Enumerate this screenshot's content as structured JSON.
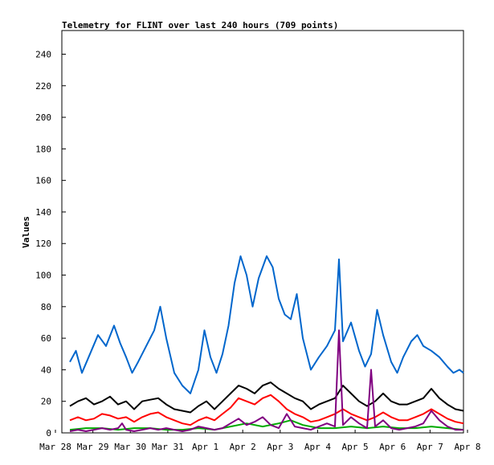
{
  "chart_data": {
    "type": "line",
    "title": "Telemetry for FLINT over last 240 hours (709 points)",
    "ylabel": "Values",
    "xlabel": "",
    "ylim": [
      0,
      255
    ],
    "yticks": [
      0,
      20,
      40,
      60,
      80,
      100,
      120,
      140,
      160,
      180,
      200,
      220,
      240
    ],
    "xlim_days": [
      0,
      10
    ],
    "x_tick_labels": [
      "Mar 28",
      "Mar 29",
      "Mar 30",
      "Mar 31",
      "Apr 1",
      "Apr 2",
      "Apr 3",
      "Apr 4",
      "Apr 5",
      "Apr 6",
      "Apr 7",
      "Apr 8"
    ],
    "x_unit": "day offset from Mar 28 00:00",
    "grid": false,
    "series": [
      {
        "color": "#0066cc",
        "points": [
          [
            0.2,
            45
          ],
          [
            0.35,
            52
          ],
          [
            0.5,
            38
          ],
          [
            0.7,
            50
          ],
          [
            0.9,
            62
          ],
          [
            1.1,
            55
          ],
          [
            1.3,
            68
          ],
          [
            1.45,
            57
          ],
          [
            1.6,
            48
          ],
          [
            1.75,
            38
          ],
          [
            1.9,
            45
          ],
          [
            2.1,
            55
          ],
          [
            2.3,
            65
          ],
          [
            2.45,
            80
          ],
          [
            2.6,
            60
          ],
          [
            2.8,
            38
          ],
          [
            3.0,
            30
          ],
          [
            3.2,
            25
          ],
          [
            3.4,
            40
          ],
          [
            3.55,
            65
          ],
          [
            3.7,
            48
          ],
          [
            3.85,
            38
          ],
          [
            4.0,
            50
          ],
          [
            4.15,
            68
          ],
          [
            4.3,
            95
          ],
          [
            4.45,
            112
          ],
          [
            4.6,
            100
          ],
          [
            4.75,
            80
          ],
          [
            4.9,
            98
          ],
          [
            5.1,
            112
          ],
          [
            5.25,
            105
          ],
          [
            5.4,
            85
          ],
          [
            5.55,
            75
          ],
          [
            5.7,
            72
          ],
          [
            5.85,
            88
          ],
          [
            6.0,
            60
          ],
          [
            6.2,
            40
          ],
          [
            6.4,
            48
          ],
          [
            6.6,
            55
          ],
          [
            6.8,
            65
          ],
          [
            6.9,
            110
          ],
          [
            7.0,
            58
          ],
          [
            7.2,
            70
          ],
          [
            7.4,
            52
          ],
          [
            7.55,
            42
          ],
          [
            7.7,
            50
          ],
          [
            7.85,
            78
          ],
          [
            8.0,
            62
          ],
          [
            8.2,
            45
          ],
          [
            8.35,
            38
          ],
          [
            8.5,
            48
          ],
          [
            8.7,
            58
          ],
          [
            8.85,
            62
          ],
          [
            9.0,
            55
          ],
          [
            9.2,
            52
          ],
          [
            9.4,
            48
          ],
          [
            9.6,
            42
          ],
          [
            9.75,
            38
          ],
          [
            9.9,
            40
          ],
          [
            10.0,
            38
          ]
        ]
      },
      {
        "color": "#000000",
        "points": [
          [
            0.2,
            17
          ],
          [
            0.4,
            20
          ],
          [
            0.6,
            22
          ],
          [
            0.8,
            18
          ],
          [
            1.0,
            20
          ],
          [
            1.2,
            23
          ],
          [
            1.4,
            18
          ],
          [
            1.6,
            20
          ],
          [
            1.8,
            15
          ],
          [
            2.0,
            20
          ],
          [
            2.2,
            21
          ],
          [
            2.4,
            22
          ],
          [
            2.6,
            18
          ],
          [
            2.8,
            15
          ],
          [
            3.0,
            14
          ],
          [
            3.2,
            13
          ],
          [
            3.4,
            17
          ],
          [
            3.6,
            20
          ],
          [
            3.8,
            15
          ],
          [
            4.0,
            20
          ],
          [
            4.2,
            25
          ],
          [
            4.4,
            30
          ],
          [
            4.6,
            28
          ],
          [
            4.8,
            25
          ],
          [
            5.0,
            30
          ],
          [
            5.2,
            32
          ],
          [
            5.4,
            28
          ],
          [
            5.6,
            25
          ],
          [
            5.8,
            22
          ],
          [
            6.0,
            20
          ],
          [
            6.2,
            15
          ],
          [
            6.4,
            18
          ],
          [
            6.6,
            20
          ],
          [
            6.8,
            22
          ],
          [
            7.0,
            30
          ],
          [
            7.2,
            25
          ],
          [
            7.4,
            20
          ],
          [
            7.6,
            17
          ],
          [
            7.8,
            20
          ],
          [
            8.0,
            25
          ],
          [
            8.2,
            20
          ],
          [
            8.4,
            18
          ],
          [
            8.6,
            18
          ],
          [
            8.8,
            20
          ],
          [
            9.0,
            22
          ],
          [
            9.2,
            28
          ],
          [
            9.4,
            22
          ],
          [
            9.6,
            18
          ],
          [
            9.8,
            15
          ],
          [
            10.0,
            14
          ]
        ]
      },
      {
        "color": "#ff0000",
        "points": [
          [
            0.2,
            8
          ],
          [
            0.4,
            10
          ],
          [
            0.6,
            8
          ],
          [
            0.8,
            9
          ],
          [
            1.0,
            12
          ],
          [
            1.2,
            11
          ],
          [
            1.4,
            9
          ],
          [
            1.6,
            10
          ],
          [
            1.8,
            7
          ],
          [
            2.0,
            10
          ],
          [
            2.2,
            12
          ],
          [
            2.4,
            13
          ],
          [
            2.6,
            10
          ],
          [
            2.8,
            8
          ],
          [
            3.0,
            6
          ],
          [
            3.2,
            5
          ],
          [
            3.4,
            8
          ],
          [
            3.6,
            10
          ],
          [
            3.8,
            8
          ],
          [
            4.0,
            12
          ],
          [
            4.2,
            16
          ],
          [
            4.4,
            22
          ],
          [
            4.6,
            20
          ],
          [
            4.8,
            18
          ],
          [
            5.0,
            22
          ],
          [
            5.2,
            24
          ],
          [
            5.4,
            20
          ],
          [
            5.6,
            15
          ],
          [
            5.8,
            12
          ],
          [
            6.0,
            10
          ],
          [
            6.2,
            7
          ],
          [
            6.4,
            8
          ],
          [
            6.6,
            10
          ],
          [
            6.8,
            12
          ],
          [
            7.0,
            15
          ],
          [
            7.2,
            12
          ],
          [
            7.4,
            10
          ],
          [
            7.6,
            8
          ],
          [
            7.8,
            10
          ],
          [
            8.0,
            13
          ],
          [
            8.2,
            10
          ],
          [
            8.4,
            8
          ],
          [
            8.6,
            8
          ],
          [
            8.8,
            10
          ],
          [
            9.0,
            12
          ],
          [
            9.2,
            15
          ],
          [
            9.4,
            12
          ],
          [
            9.6,
            9
          ],
          [
            9.8,
            7
          ],
          [
            10.0,
            6
          ]
        ]
      },
      {
        "color": "#00aa00",
        "points": [
          [
            0.2,
            2
          ],
          [
            0.6,
            3
          ],
          [
            1.0,
            3
          ],
          [
            1.4,
            2
          ],
          [
            1.8,
            3
          ],
          [
            2.2,
            3
          ],
          [
            2.6,
            2
          ],
          [
            3.0,
            2
          ],
          [
            3.4,
            3
          ],
          [
            3.8,
            2
          ],
          [
            4.2,
            4
          ],
          [
            4.6,
            6
          ],
          [
            5.0,
            4
          ],
          [
            5.4,
            6
          ],
          [
            5.7,
            8
          ],
          [
            6.0,
            5
          ],
          [
            6.4,
            3
          ],
          [
            6.8,
            3
          ],
          [
            7.2,
            4
          ],
          [
            7.6,
            3
          ],
          [
            8.0,
            4
          ],
          [
            8.4,
            3
          ],
          [
            8.8,
            3
          ],
          [
            9.2,
            4
          ],
          [
            9.6,
            3
          ],
          [
            10.0,
            2
          ]
        ]
      },
      {
        "color": "#800080",
        "points": [
          [
            0.2,
            1
          ],
          [
            0.4,
            2
          ],
          [
            0.6,
            1
          ],
          [
            0.8,
            2
          ],
          [
            1.0,
            3
          ],
          [
            1.2,
            2
          ],
          [
            1.4,
            3
          ],
          [
            1.5,
            6
          ],
          [
            1.6,
            2
          ],
          [
            1.8,
            1
          ],
          [
            2.0,
            2
          ],
          [
            2.2,
            3
          ],
          [
            2.4,
            2
          ],
          [
            2.6,
            3
          ],
          [
            2.8,
            2
          ],
          [
            3.0,
            1
          ],
          [
            3.2,
            2
          ],
          [
            3.4,
            4
          ],
          [
            3.6,
            3
          ],
          [
            3.8,
            2
          ],
          [
            4.0,
            3
          ],
          [
            4.2,
            6
          ],
          [
            4.4,
            9
          ],
          [
            4.6,
            5
          ],
          [
            4.8,
            7
          ],
          [
            5.0,
            10
          ],
          [
            5.2,
            5
          ],
          [
            5.4,
            3
          ],
          [
            5.6,
            12
          ],
          [
            5.8,
            4
          ],
          [
            6.0,
            3
          ],
          [
            6.2,
            2
          ],
          [
            6.4,
            4
          ],
          [
            6.6,
            6
          ],
          [
            6.8,
            4
          ],
          [
            6.9,
            65
          ],
          [
            7.0,
            5
          ],
          [
            7.2,
            10
          ],
          [
            7.4,
            6
          ],
          [
            7.6,
            3
          ],
          [
            7.7,
            40
          ],
          [
            7.8,
            4
          ],
          [
            8.0,
            8
          ],
          [
            8.2,
            3
          ],
          [
            8.4,
            2
          ],
          [
            8.6,
            3
          ],
          [
            8.8,
            4
          ],
          [
            9.0,
            6
          ],
          [
            9.2,
            14
          ],
          [
            9.4,
            8
          ],
          [
            9.6,
            4
          ],
          [
            9.8,
            2
          ],
          [
            10.0,
            2
          ]
        ]
      }
    ]
  }
}
